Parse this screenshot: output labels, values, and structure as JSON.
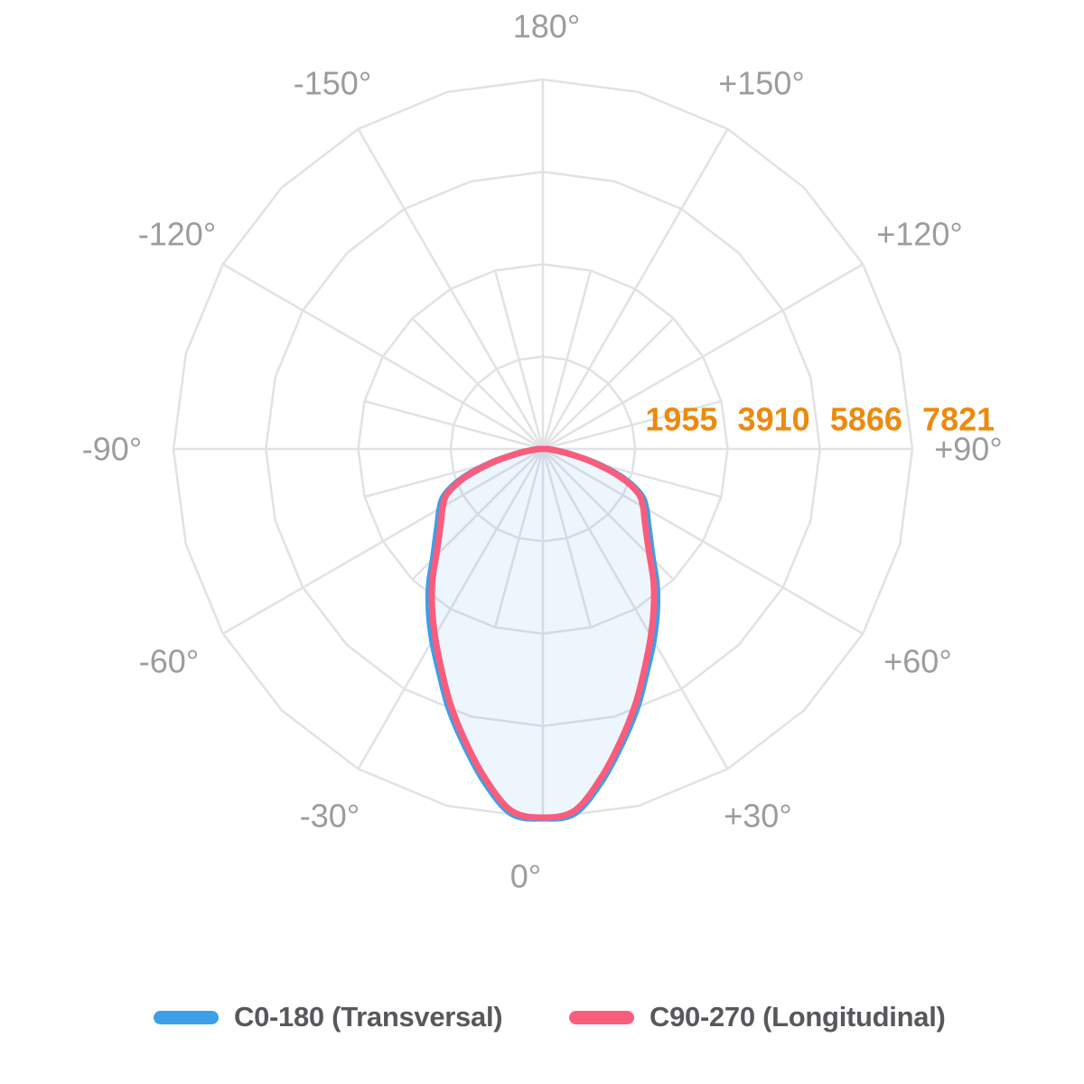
{
  "chart_data": {
    "type": "polar",
    "subtype": "photometric-light-distribution",
    "title": "",
    "units": "cd",
    "max_value": 7821,
    "ring_values": [
      1955,
      3910,
      5866,
      7821
    ],
    "ring_label_color": "#EC8A0E",
    "angle_label_color": "#9B9C9E",
    "grid_color": "#E1E2E4",
    "grid": {
      "rings": 4,
      "major_spoke_step_deg": 30,
      "minor_spoke_step_deg": 15,
      "minor_spoke_rings": 2
    },
    "angle_labels": [
      "180°",
      "-150°",
      "+150°",
      "-120°",
      "+120°",
      "-90°",
      "+90°",
      "-60°",
      "+60°",
      "-30°",
      "+30°",
      "0°"
    ],
    "gamma_deg": [
      0,
      5,
      10,
      15,
      20,
      25,
      30,
      35,
      40,
      45,
      50,
      55,
      60,
      65,
      70,
      75,
      80,
      85,
      90
    ],
    "symmetric_about_nadir": true,
    "series": [
      {
        "name": "C0-180 (Transversal)",
        "color": "#3D9FE8",
        "fill": "rgba(63,150,230,0.09)",
        "values_cd": [
          7821,
          7744,
          7151,
          6463,
          5832,
          5201,
          4684,
          4206,
          3748,
          3289,
          2964,
          2715,
          2524,
          2294,
          1816,
          1147,
          535,
          191,
          76
        ]
      },
      {
        "name": "C90-270 (Longitudinal)",
        "color": "#FA5D7C",
        "fill": "none",
        "values_cd": [
          7802,
          7687,
          7074,
          6386,
          5736,
          5105,
          4570,
          4092,
          3642,
          3193,
          2868,
          2629,
          2448,
          2228,
          1759,
          1109,
          516,
          191,
          76
        ]
      }
    ]
  },
  "legend": {
    "items": [
      {
        "label": "C0-180 (Transversal)",
        "color": "#3D9FE8"
      },
      {
        "label": "C90-270 (Longitudinal)",
        "color": "#FA5D7C"
      }
    ]
  }
}
